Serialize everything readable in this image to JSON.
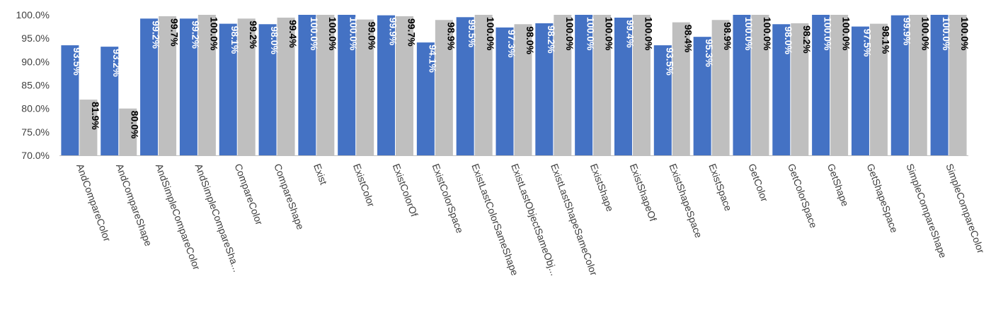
{
  "chart_data": {
    "type": "bar",
    "categories": [
      "AndCompareColor",
      "AndCompareShape",
      "AndSimpleCompareColor",
      "AndSimpleCompareSha...",
      "CompareColor",
      "CompareShape",
      "Exist",
      "ExistColor",
      "ExistColorOf",
      "ExistColorSpace",
      "ExistLastColorSameShape",
      "ExistLastObjectSameObj...",
      "ExistLastShapeSameColor",
      "ExistShape",
      "ExistShapeOf",
      "ExistShapeSpace",
      "ExistSpace",
      "GetColor",
      "GetColorSpace",
      "GetShape",
      "GetShapeSpace",
      "SimpleCompareShape",
      "SimpleCompareColor"
    ],
    "series": [
      {
        "color": "#4472C4",
        "label_color": "#ffffff",
        "values": [
          93.5,
          93.2,
          99.2,
          99.2,
          98.1,
          98.0,
          100.0,
          100.0,
          99.9,
          94.1,
          99.5,
          97.3,
          98.2,
          100.0,
          99.4,
          93.5,
          95.3,
          100.0,
          98.0,
          100.0,
          97.5,
          99.9,
          100.0
        ],
        "labels": [
          "93.5%",
          "93.2%",
          "99.2%",
          "99.2%",
          "98.1%",
          "98.0%",
          "100.0%",
          "100.0%",
          "99.9%",
          "94.1%",
          "99.5%",
          "97.3%",
          "98.2%",
          "100.0%",
          "99.4%",
          "93.5%",
          "95.3%",
          "100.0%",
          "98.0%",
          "100.0%",
          "97.5%",
          "99.9%",
          "100.0%"
        ]
      },
      {
        "color": "#BFBFBF",
        "label_color": "#000000",
        "values": [
          81.9,
          80.0,
          99.7,
          100.0,
          99.2,
          99.4,
          100.0,
          99.0,
          99.7,
          98.9,
          100.0,
          98.0,
          100.0,
          100.0,
          100.0,
          98.4,
          98.9,
          100.0,
          98.2,
          100.0,
          98.1,
          100.0,
          100.0
        ],
        "labels": [
          "81.9%",
          "80.0%",
          "99.7%",
          "100.0%",
          "99.2%",
          "99.4%",
          "100.0%",
          "99.0%",
          "99.7%",
          "98.9%",
          "100.0%",
          "98.0%",
          "100.0%",
          "100.0%",
          "100.0%",
          "98.4%",
          "98.9%",
          "100.0%",
          "98.2%",
          "100.0%",
          "98.1%",
          "100.0%",
          "100.0%"
        ]
      }
    ],
    "ylim": [
      70,
      100
    ],
    "yticks": [
      "100.0%",
      "95.0%",
      "90.0%",
      "85.0%",
      "80.0%",
      "75.0%",
      "70.0%"
    ],
    "ytick_values": [
      100,
      95,
      90,
      85,
      80,
      75,
      70
    ],
    "grid": false,
    "legend": "none"
  }
}
